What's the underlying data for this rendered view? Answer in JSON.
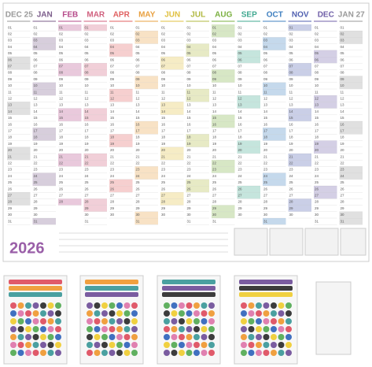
{
  "planner": {
    "year": "2026",
    "months": [
      "DEC 25",
      "JAN",
      "FEB",
      "MAR",
      "APR",
      "MAY",
      "JUN",
      "JUL",
      "AUG",
      "SEP",
      "OCT",
      "NOV",
      "DEC",
      "JAN 27"
    ],
    "days": [
      "01",
      "02",
      "03",
      "04",
      "05",
      "06",
      "07",
      "08",
      "09",
      "10",
      "11",
      "12",
      "13",
      "14",
      "15",
      "16",
      "17",
      "18",
      "19",
      "20",
      "21",
      "22",
      "23",
      "24",
      "25",
      "26",
      "27",
      "28",
      "29",
      "30",
      "31"
    ]
  }
}
